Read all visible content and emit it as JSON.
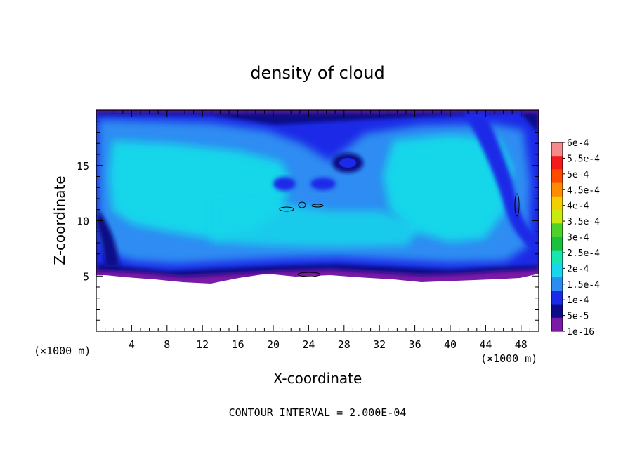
{
  "chart_data": {
    "type": "heatmap",
    "title": "density of cloud",
    "xlabel": "X-coordinate",
    "ylabel": "Z-coordinate",
    "x_unit": "(×1000 m)",
    "z_unit": "(×1000 m)",
    "footer": "CONTOUR INTERVAL = 2.000E-04",
    "xlim": [
      0,
      50
    ],
    "ylim": [
      0,
      20
    ],
    "x_ticks": [
      4,
      8,
      12,
      16,
      20,
      24,
      28,
      32,
      36,
      40,
      44,
      48
    ],
    "y_ticks": [
      5,
      10,
      15
    ],
    "colorbar": {
      "labels": [
        "6e-4",
        "5.5e-4",
        "5e-4",
        "4.5e-4",
        "4e-4",
        "3.5e-4",
        "3e-4",
        "2.5e-4",
        "2e-4",
        "1.5e-4",
        "1e-4",
        "5e-5",
        "1e-16"
      ],
      "colors": [
        "#f58a8a",
        "#f21a1a",
        "#ff4b00",
        "#ff8c00",
        "#f2cf00",
        "#c9ea10",
        "#4ed22a",
        "#19c13e",
        "#18e6b0",
        "#19d6ea",
        "#2d8cf2",
        "#1a2ae8",
        "#0c0c88",
        "#7a1aa6"
      ]
    },
    "field": {
      "description": "cloud density over x (0-50 km) and z (0-20 km)",
      "cloud_base_z": 5.5,
      "typical_core": "1.5e-4 to 2e-4",
      "max_contour": "2e-4"
    }
  }
}
